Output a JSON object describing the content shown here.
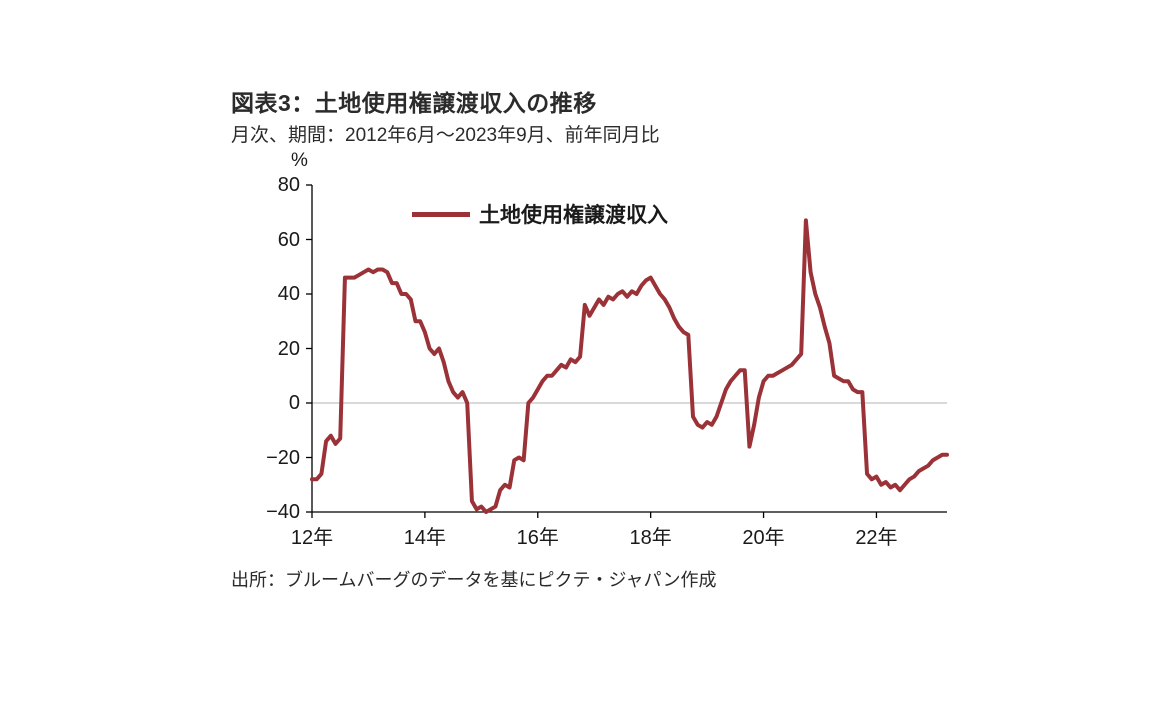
{
  "chart_data": {
    "type": "line",
    "title": "図表3：土地使用権譲渡収入の推移",
    "subtitle": "月次、期間：2012年6月～2023年9月、前年同月比",
    "unit_label": "%",
    "legend": "土地使用権譲渡収入",
    "source": "出所：ブルームバーグのデータを基にピクテ・ジャパン作成",
    "line_color": "#9a3238",
    "zero_line_color": "#b3b3b3",
    "axis_color": "#000000",
    "ylim": [
      -40,
      80
    ],
    "yticks": [
      80,
      60,
      40,
      20,
      0,
      -20,
      -40
    ],
    "ytick_labels": [
      "80",
      "60",
      "40",
      "20",
      "0",
      "−20",
      "−40"
    ],
    "xticks": [
      "12年",
      "14年",
      "16年",
      "18年",
      "20年",
      "22年"
    ],
    "xtick_indices": [
      0,
      24,
      48,
      72,
      96,
      120
    ],
    "x_start_label": "2012年6月",
    "x_end_label": "2023年9月",
    "values": [
      -28,
      -28,
      -26,
      -14,
      -12,
      -15,
      -13,
      46,
      46,
      46,
      47,
      48,
      49,
      48,
      49,
      49,
      48,
      44,
      44,
      40,
      40,
      38,
      30,
      30,
      26,
      20,
      18,
      20,
      15,
      8,
      4,
      2,
      4,
      0,
      -36,
      -39,
      -38,
      -40,
      -39,
      -38,
      -32,
      -30,
      -31,
      -21,
      -20,
      -21,
      0,
      2,
      5,
      8,
      10,
      10,
      12,
      14,
      13,
      16,
      15,
      17,
      36,
      32,
      35,
      38,
      36,
      39,
      38,
      40,
      41,
      39,
      41,
      40,
      43,
      45,
      46,
      43,
      40,
      38,
      35,
      31,
      28,
      26,
      25,
      -5,
      -8,
      -9,
      -7,
      -8,
      -5,
      0,
      5,
      8,
      10,
      12,
      12,
      -16,
      -8,
      2,
      8,
      10,
      10,
      11,
      12,
      13,
      14,
      16,
      18,
      67,
      48,
      40,
      35,
      28,
      22,
      10,
      9,
      8,
      8,
      5,
      4,
      4,
      -26,
      -28,
      -27,
      -30,
      -29,
      -31,
      -30,
      -32,
      -30,
      -28,
      -27,
      -25,
      -24,
      -23,
      -21,
      -20,
      -19,
      -19
    ]
  }
}
